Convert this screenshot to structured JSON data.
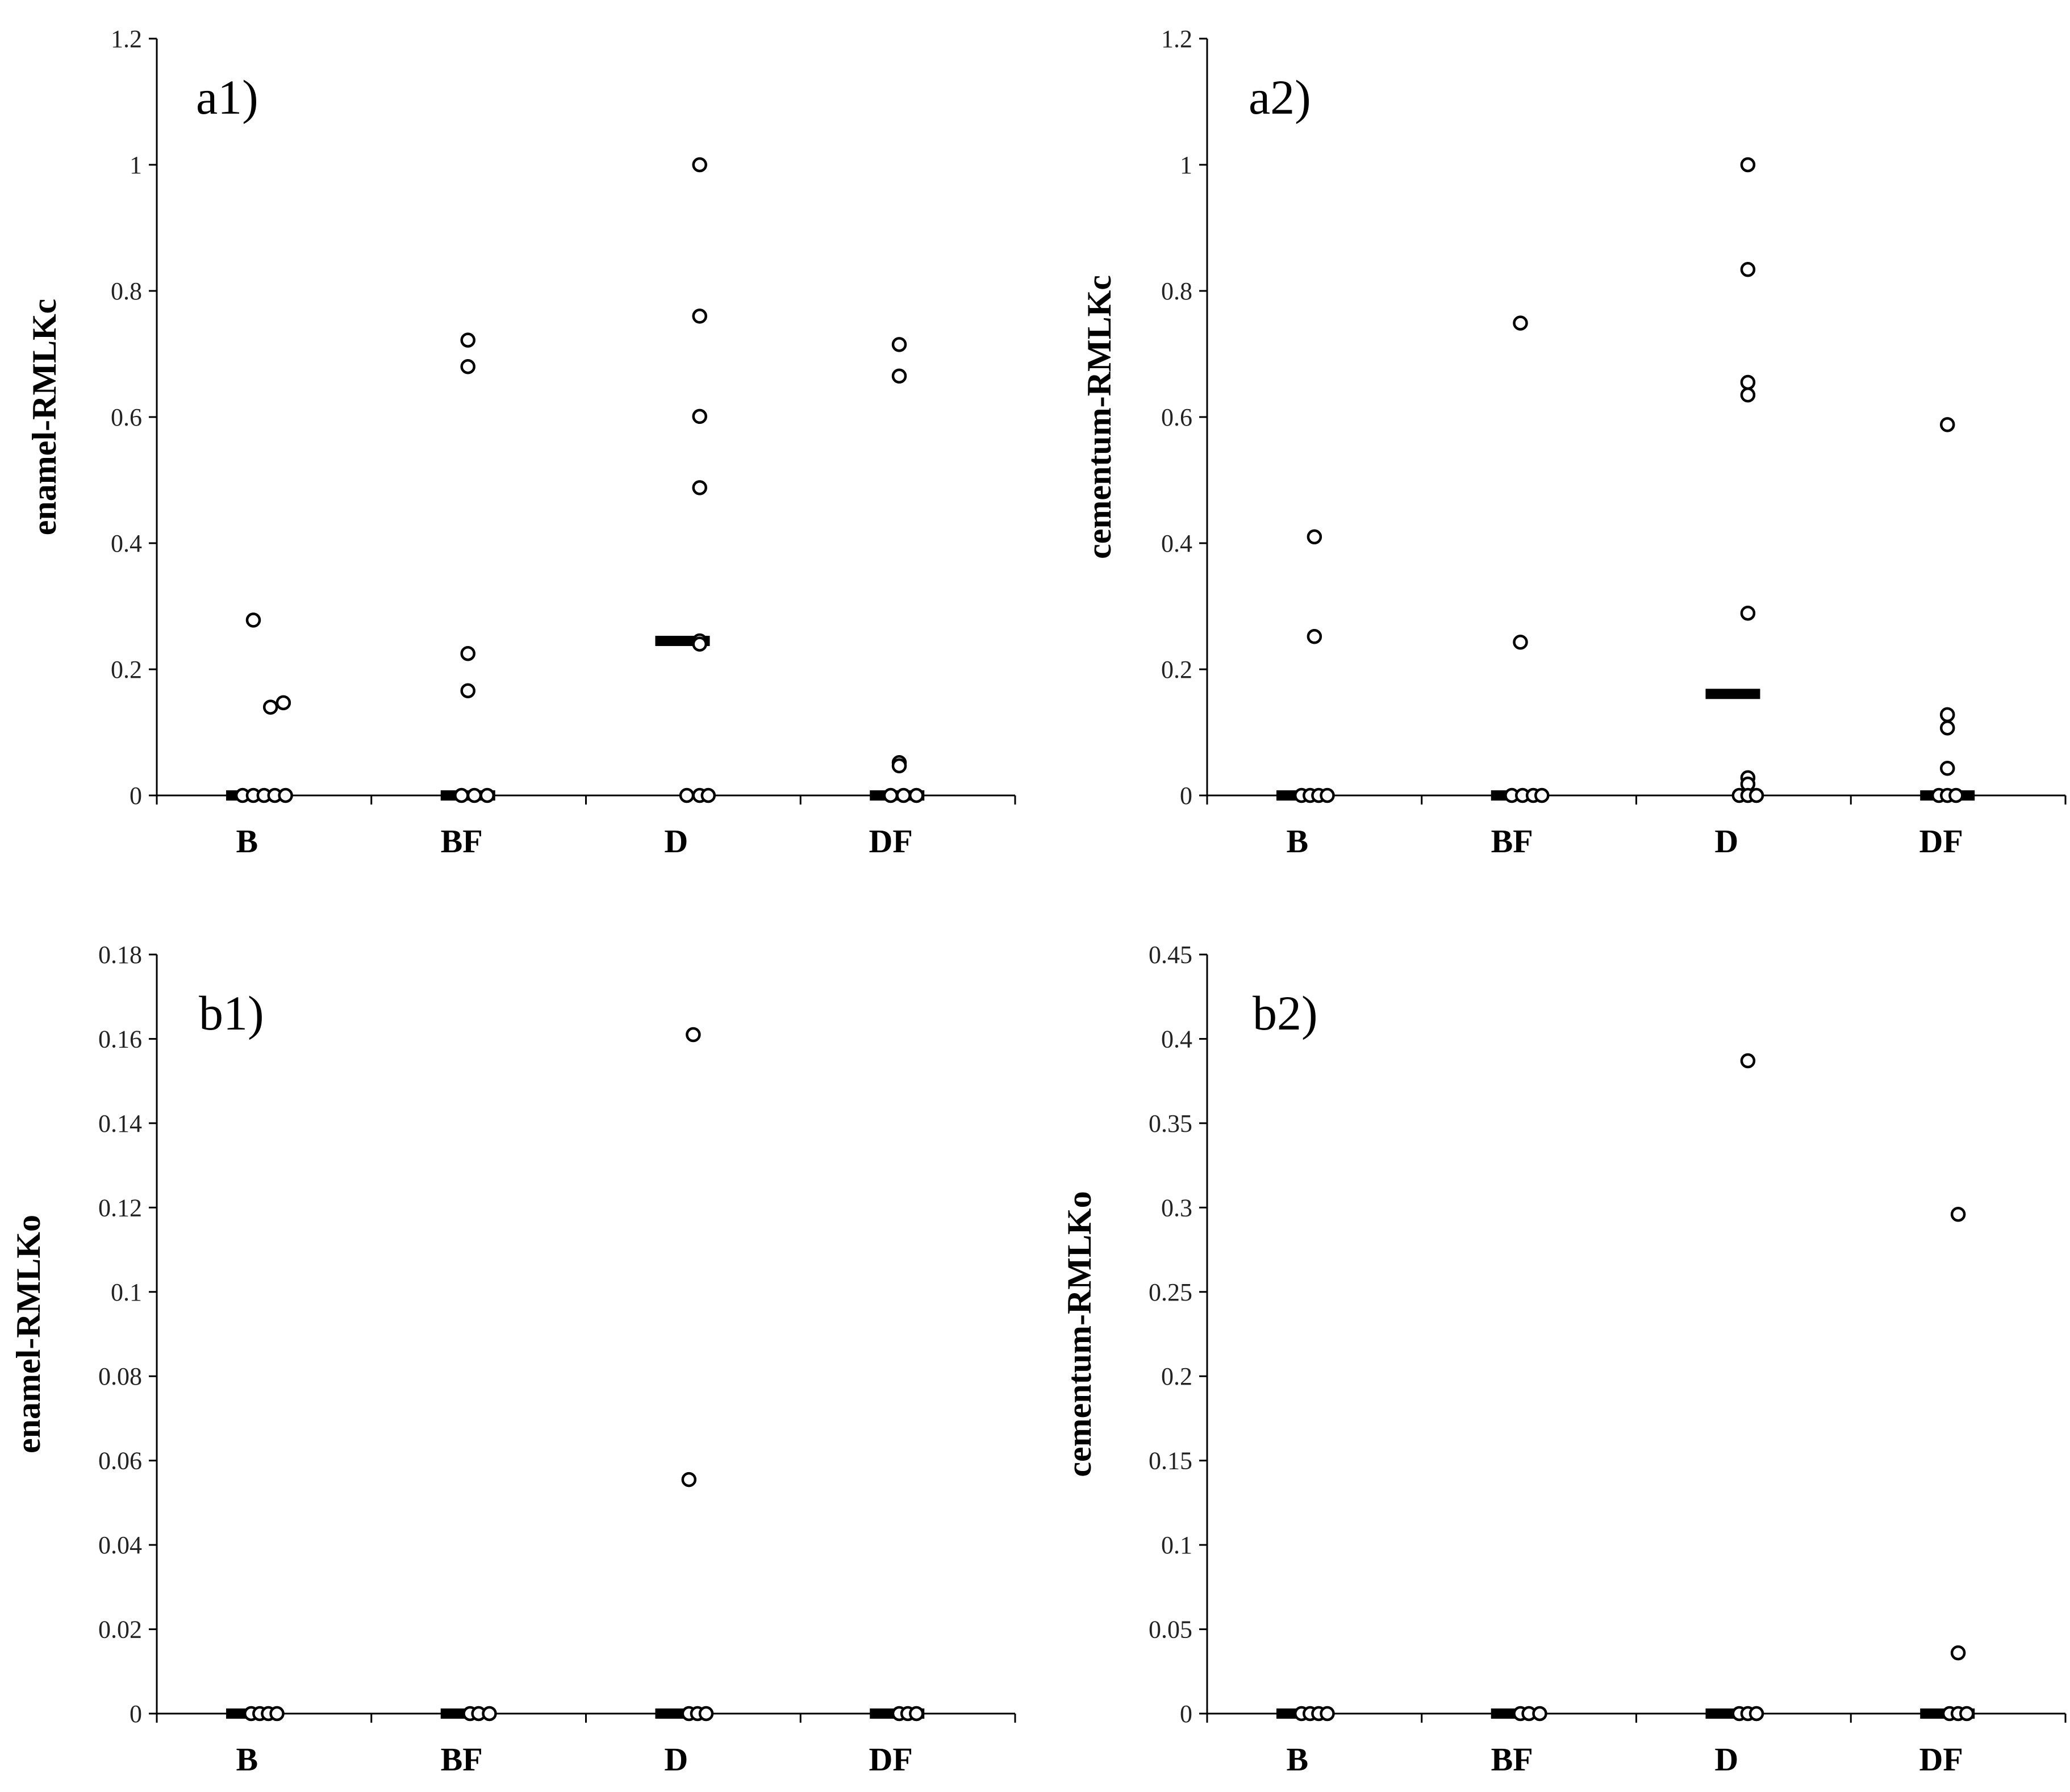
{
  "chart_data": [
    {
      "type": "scatter",
      "panel_label": "a1)",
      "ylabel": "enamel-RMLKc",
      "ylim": [
        0,
        1.2
      ],
      "yticks": [
        0,
        0.2,
        0.4,
        0.6,
        0.8,
        1,
        1.2
      ],
      "ytick_labels": [
        "0",
        "0.2",
        "0.4",
        "0.6",
        "0.8",
        "1",
        "1.2"
      ],
      "categories": [
        "B",
        "BF",
        "D",
        "DF"
      ],
      "points": [
        {
          "category": "B",
          "y": 0.278,
          "offset": -0.05
        },
        {
          "category": "B",
          "y": 0.14,
          "offset": 0.03
        },
        {
          "category": "B",
          "y": 0.147,
          "offset": 0.09
        },
        {
          "category": "B",
          "y": 0,
          "offset": -0.1
        },
        {
          "category": "B",
          "y": 0,
          "offset": -0.05
        },
        {
          "category": "B",
          "y": 0,
          "offset": 0
        },
        {
          "category": "B",
          "y": 0,
          "offset": 0.05
        },
        {
          "category": "B",
          "y": 0,
          "offset": 0.1
        },
        {
          "category": "BF",
          "y": 0.722,
          "offset": -0.05
        },
        {
          "category": "BF",
          "y": 0.68,
          "offset": -0.05
        },
        {
          "category": "BF",
          "y": 0.225,
          "offset": -0.05
        },
        {
          "category": "BF",
          "y": 0.166,
          "offset": -0.05
        },
        {
          "category": "BF",
          "y": 0,
          "offset": -0.08
        },
        {
          "category": "BF",
          "y": 0,
          "offset": -0.02
        },
        {
          "category": "BF",
          "y": 0,
          "offset": 0.04
        },
        {
          "category": "D",
          "y": 1.0,
          "offset": 0.03
        },
        {
          "category": "D",
          "y": 0.76,
          "offset": 0.03
        },
        {
          "category": "D",
          "y": 0.601,
          "offset": 0.03
        },
        {
          "category": "D",
          "y": 0.488,
          "offset": 0.03
        },
        {
          "category": "D",
          "y": 0.245,
          "offset": 0.03
        },
        {
          "category": "D",
          "y": 0.24,
          "offset": 0.03
        },
        {
          "category": "D",
          "y": 0,
          "offset": -0.03
        },
        {
          "category": "D",
          "y": 0,
          "offset": 0.03
        },
        {
          "category": "D",
          "y": 0,
          "offset": 0.07
        },
        {
          "category": "DF",
          "y": 0.715,
          "offset": -0.04
        },
        {
          "category": "DF",
          "y": 0.665,
          "offset": -0.04
        },
        {
          "category": "DF",
          "y": 0.052,
          "offset": -0.04
        },
        {
          "category": "DF",
          "y": 0.047,
          "offset": -0.04
        },
        {
          "category": "DF",
          "y": 0,
          "offset": -0.08
        },
        {
          "category": "DF",
          "y": 0,
          "offset": -0.02
        },
        {
          "category": "DF",
          "y": 0,
          "offset": 0.04
        }
      ],
      "medians": [
        {
          "category": "B",
          "y": 0
        },
        {
          "category": "BF",
          "y": 0
        },
        {
          "category": "D",
          "y": 0.245
        },
        {
          "category": "DF",
          "y": 0
        }
      ]
    },
    {
      "type": "scatter",
      "panel_label": "a2)",
      "ylabel": "cementum-RMLKc",
      "ylim": [
        0,
        1.2
      ],
      "yticks": [
        0,
        0.2,
        0.4,
        0.6,
        0.8,
        1,
        1.2
      ],
      "ytick_labels": [
        "0",
        "0.2",
        "0.4",
        "0.6",
        "0.8",
        "1",
        "1.2"
      ],
      "categories": [
        "B",
        "BF",
        "D",
        "DF"
      ],
      "points": [
        {
          "category": "B",
          "y": 0.41,
          "offset": 0
        },
        {
          "category": "B",
          "y": 0.252,
          "offset": 0
        },
        {
          "category": "B",
          "y": 0,
          "offset": -0.06
        },
        {
          "category": "B",
          "y": 0,
          "offset": -0.02
        },
        {
          "category": "B",
          "y": 0,
          "offset": 0.02
        },
        {
          "category": "B",
          "y": 0,
          "offset": 0.06
        },
        {
          "category": "BF",
          "y": 0.749,
          "offset": -0.04
        },
        {
          "category": "BF",
          "y": 0.243,
          "offset": -0.04
        },
        {
          "category": "BF",
          "y": 0,
          "offset": -0.08
        },
        {
          "category": "BF",
          "y": 0,
          "offset": -0.03
        },
        {
          "category": "BF",
          "y": 0,
          "offset": 0.02
        },
        {
          "category": "BF",
          "y": 0,
          "offset": 0.06
        },
        {
          "category": "D",
          "y": 1.0,
          "offset": 0.02
        },
        {
          "category": "D",
          "y": 0.834,
          "offset": 0.02
        },
        {
          "category": "D",
          "y": 0.655,
          "offset": 0.02
        },
        {
          "category": "D",
          "y": 0.635,
          "offset": 0.02
        },
        {
          "category": "D",
          "y": 0.289,
          "offset": 0.02
        },
        {
          "category": "D",
          "y": 0.028,
          "offset": 0.02
        },
        {
          "category": "D",
          "y": 0.018,
          "offset": 0.02
        },
        {
          "category": "D",
          "y": 0,
          "offset": -0.02
        },
        {
          "category": "D",
          "y": 0,
          "offset": 0.02
        },
        {
          "category": "D",
          "y": 0,
          "offset": 0.06
        },
        {
          "category": "DF",
          "y": 0.588,
          "offset": -0.05
        },
        {
          "category": "DF",
          "y": 0.128,
          "offset": -0.05
        },
        {
          "category": "DF",
          "y": 0.107,
          "offset": -0.05
        },
        {
          "category": "DF",
          "y": 0.043,
          "offset": -0.05
        },
        {
          "category": "DF",
          "y": 0,
          "offset": -0.09
        },
        {
          "category": "DF",
          "y": 0,
          "offset": -0.05
        },
        {
          "category": "DF",
          "y": 0,
          "offset": -0.01
        }
      ],
      "medians": [
        {
          "category": "B",
          "y": 0
        },
        {
          "category": "BF",
          "y": 0
        },
        {
          "category": "D",
          "y": 0.161
        },
        {
          "category": "DF",
          "y": 0
        }
      ]
    },
    {
      "type": "scatter",
      "panel_label": "b1)",
      "ylabel": "enamel-RMLKo",
      "ylim": [
        0,
        0.18
      ],
      "yticks": [
        0,
        0.02,
        0.04,
        0.06,
        0.08,
        0.1,
        0.12,
        0.14,
        0.16,
        0.18
      ],
      "ytick_labels": [
        "0",
        "0.02",
        "0.04",
        "0.06",
        "0.08",
        "0.1",
        "0.12",
        "0.14",
        "0.16",
        "0.18"
      ],
      "categories": [
        "B",
        "BF",
        "D",
        "DF"
      ],
      "points": [
        {
          "category": "B",
          "y": 0,
          "offset": -0.06
        },
        {
          "category": "B",
          "y": 0,
          "offset": -0.02
        },
        {
          "category": "B",
          "y": 0,
          "offset": 0.02
        },
        {
          "category": "B",
          "y": 0,
          "offset": 0.06
        },
        {
          "category": "BF",
          "y": 0,
          "offset": -0.04
        },
        {
          "category": "BF",
          "y": 0,
          "offset": 0
        },
        {
          "category": "BF",
          "y": 0,
          "offset": 0.05
        },
        {
          "category": "D",
          "y": 0.161,
          "offset": 0
        },
        {
          "category": "D",
          "y": 0.0555,
          "offset": -0.02
        },
        {
          "category": "D",
          "y": 0,
          "offset": -0.02
        },
        {
          "category": "D",
          "y": 0,
          "offset": 0.02
        },
        {
          "category": "D",
          "y": 0,
          "offset": 0.06
        },
        {
          "category": "DF",
          "y": 0,
          "offset": -0.04
        },
        {
          "category": "DF",
          "y": 0,
          "offset": 0
        },
        {
          "category": "DF",
          "y": 0,
          "offset": 0.04
        }
      ],
      "medians": [
        {
          "category": "B",
          "y": 0
        },
        {
          "category": "BF",
          "y": 0
        },
        {
          "category": "D",
          "y": 0
        },
        {
          "category": "DF",
          "y": 0
        }
      ]
    },
    {
      "type": "scatter",
      "panel_label": "b2)",
      "ylabel": "cementum-RMLKo",
      "ylim": [
        0,
        0.45
      ],
      "yticks": [
        0,
        0.05,
        0.1,
        0.15,
        0.2,
        0.25,
        0.3,
        0.35,
        0.4,
        0.45
      ],
      "ytick_labels": [
        "0",
        "0.05",
        "0.1",
        "0.15",
        "0.2",
        "0.25",
        "0.3",
        "0.35",
        "0.4",
        "0.45"
      ],
      "categories": [
        "B",
        "BF",
        "D",
        "DF"
      ],
      "points": [
        {
          "category": "B",
          "y": 0,
          "offset": -0.06
        },
        {
          "category": "B",
          "y": 0,
          "offset": -0.02
        },
        {
          "category": "B",
          "y": 0,
          "offset": 0.02
        },
        {
          "category": "B",
          "y": 0,
          "offset": 0.06
        },
        {
          "category": "BF",
          "y": 0,
          "offset": -0.04
        },
        {
          "category": "BF",
          "y": 0,
          "offset": 0
        },
        {
          "category": "BF",
          "y": 0,
          "offset": 0.05
        },
        {
          "category": "D",
          "y": 0.387,
          "offset": 0.02
        },
        {
          "category": "D",
          "y": 0,
          "offset": -0.02
        },
        {
          "category": "D",
          "y": 0,
          "offset": 0.02
        },
        {
          "category": "D",
          "y": 0,
          "offset": 0.06
        },
        {
          "category": "DF",
          "y": 0.296,
          "offset": 0
        },
        {
          "category": "DF",
          "y": 0.036,
          "offset": 0
        },
        {
          "category": "DF",
          "y": 0,
          "offset": -0.04
        },
        {
          "category": "DF",
          "y": 0,
          "offset": 0
        },
        {
          "category": "DF",
          "y": 0,
          "offset": 0.04
        }
      ],
      "medians": [
        {
          "category": "B",
          "y": 0
        },
        {
          "category": "BF",
          "y": 0
        },
        {
          "category": "D",
          "y": 0
        },
        {
          "category": "DF",
          "y": 0
        }
      ]
    }
  ]
}
